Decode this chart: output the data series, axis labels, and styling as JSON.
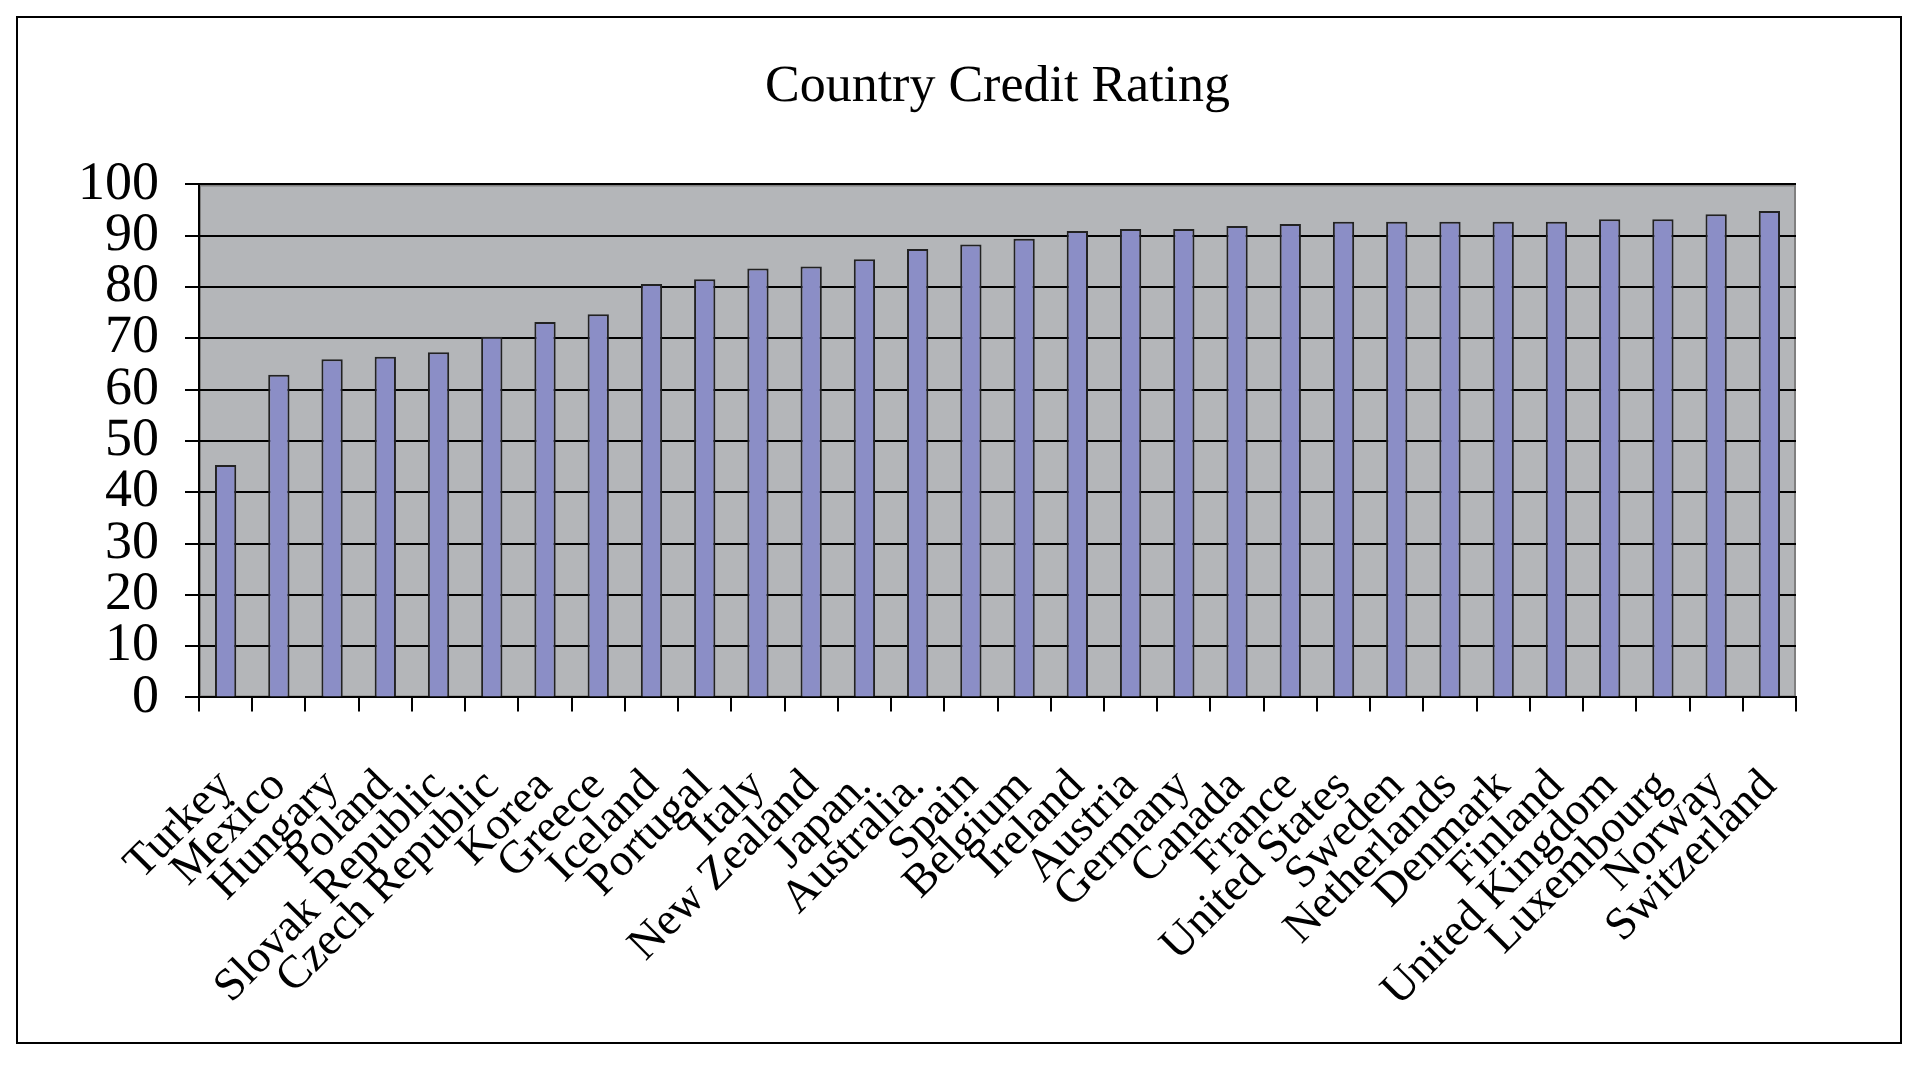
{
  "chart_data": {
    "type": "bar",
    "title": "Country Credit Rating",
    "categories": [
      "Turkey",
      "Mexico",
      "Hungary",
      "Poland",
      "Slovak Republic",
      "Czech Republic",
      "Korea",
      "Greece",
      "Iceland",
      "Portugal",
      "Italy",
      "New Zealand",
      "Japan.",
      "Australia.",
      "Spain",
      "Belgium",
      "Ireland",
      "Austria",
      "Germany",
      "Canada",
      "France",
      "United States",
      "Sweden",
      "Netherlands",
      "Denmark",
      "Finland",
      "United Kingdom",
      "Luxembourg",
      "Norway",
      "Switzerland"
    ],
    "values": [
      45.3,
      62.9,
      65.9,
      66.4,
      67.3,
      70.3,
      73.2,
      74.7,
      80.6,
      81.5,
      83.6,
      84.0,
      85.4,
      87.4,
      88.3,
      89.4,
      90.9,
      91.3,
      91.3,
      91.9,
      92.3,
      92.7,
      92.7,
      92.7,
      92.7,
      92.7,
      93.2,
      93.2,
      94.2,
      94.8
    ],
    "color": "#8b8ec6",
    "ylim": [
      0,
      100
    ],
    "yticks": [
      0,
      10,
      20,
      30,
      40,
      50,
      60,
      70,
      80,
      90,
      100
    ],
    "grid": "y"
  }
}
